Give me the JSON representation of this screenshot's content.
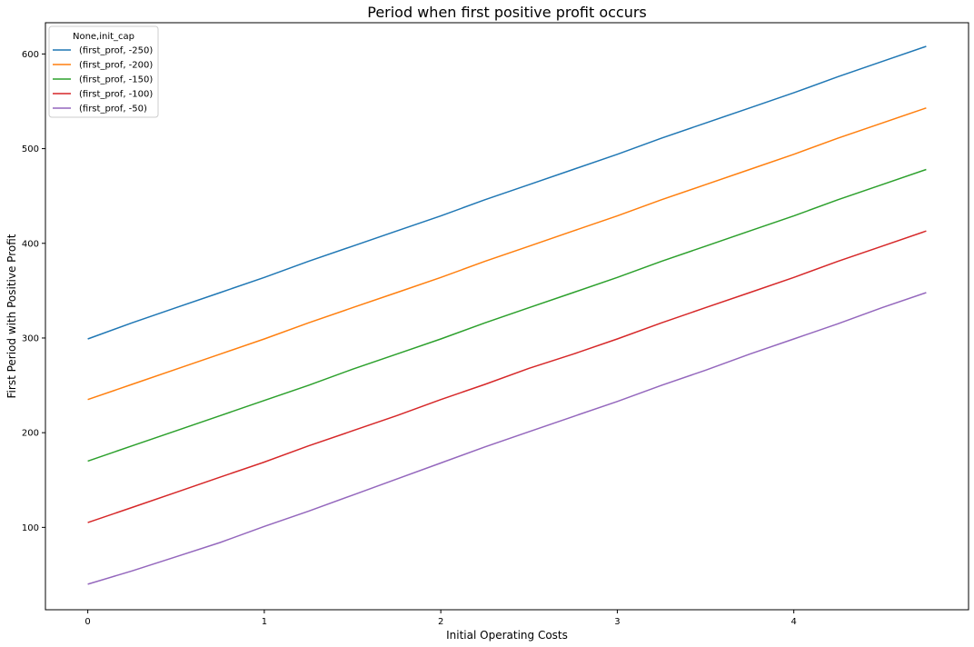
{
  "chart_data": {
    "type": "line",
    "title": "Period when first positive profit occurs",
    "xlabel": "Initial Operating Costs",
    "ylabel": "First Period with Positive Profit",
    "xlim": [
      -0.24,
      4.99
    ],
    "ylim": [
      13,
      633
    ],
    "xticks": [
      0,
      1,
      2,
      3,
      4
    ],
    "yticks": [
      100,
      200,
      300,
      400,
      500,
      600
    ],
    "grid": false,
    "legend": {
      "title": "None,init_cap",
      "placement": "top-left"
    },
    "x": [
      0,
      0.25,
      0.5,
      0.75,
      1.0,
      1.25,
      1.5,
      1.75,
      2.0,
      2.25,
      2.5,
      2.75,
      3.0,
      3.25,
      3.5,
      3.75,
      4.0,
      4.25,
      4.5,
      4.75
    ],
    "series": [
      {
        "name": "(first_prof, -250)",
        "color": "#1f77b4",
        "values": [
          299,
          316,
          332,
          348,
          364,
          381,
          397,
          413,
          429,
          446,
          462,
          478,
          494,
          511,
          527,
          543,
          559,
          576,
          592,
          608
        ]
      },
      {
        "name": "(first_prof, -200)",
        "color": "#ff7f0e",
        "values": [
          235,
          251,
          267,
          283,
          299,
          316,
          332,
          348,
          364,
          381,
          397,
          413,
          429,
          446,
          462,
          478,
          494,
          511,
          527,
          543
        ]
      },
      {
        "name": "(first_prof, -150)",
        "color": "#2ca02c",
        "values": [
          170,
          186,
          202,
          218,
          234,
          250,
          267,
          283,
          299,
          316,
          332,
          348,
          364,
          381,
          397,
          413,
          429,
          446,
          462,
          478
        ]
      },
      {
        "name": "(first_prof, -100)",
        "color": "#d62728",
        "values": [
          105,
          121,
          137,
          153,
          169,
          186,
          202,
          218,
          235,
          251,
          268,
          283,
          299,
          316,
          332,
          348,
          364,
          381,
          397,
          413
        ]
      },
      {
        "name": "(first_prof, -50)",
        "color": "#9467bd",
        "values": [
          40,
          54,
          69,
          84,
          101,
          117,
          134,
          151,
          168,
          185,
          201,
          217,
          233,
          250,
          266,
          283,
          299,
          315,
          332,
          348
        ]
      }
    ]
  }
}
